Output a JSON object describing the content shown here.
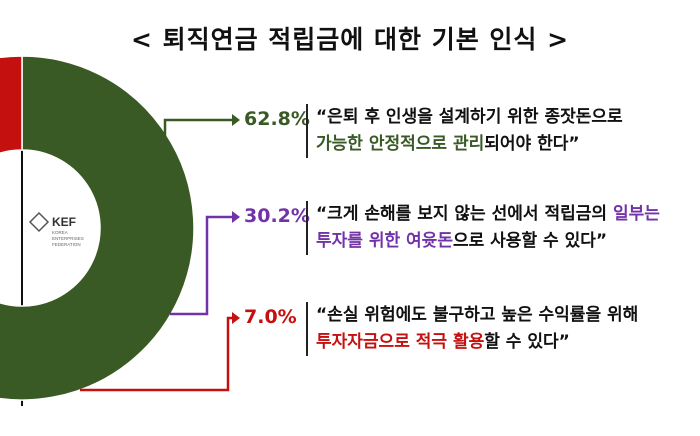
{
  "title": "< 퇴직연금 적립금에 대한 기본 인식 >",
  "logo": {
    "text": "KEF",
    "subtext": "KOREA ENTERPRISES FEDERATION"
  },
  "colors": {
    "green": "#3a5a25",
    "purple": "#7232a8",
    "red": "#c4100f"
  },
  "chart_data": {
    "type": "pie",
    "variant": "donut",
    "values": [
      62.8,
      30.2,
      7.0
    ],
    "labels": [
      "62.8%",
      "30.2%",
      "7.0%"
    ],
    "colors": [
      "#3a5a25",
      "#7232a8",
      "#c4100f"
    ]
  },
  "annotations": [
    {
      "pct": "62.8%",
      "color": "#3a5a25",
      "lines": [
        [
          {
            "t": "“은퇴 후 인생을 설계하기 위한 종잣돈으로",
            "hl": false
          }
        ],
        [
          {
            "t": "가능한 안정적으로 관리",
            "hl": true
          },
          {
            "t": "되어야 한다”",
            "hl": false
          }
        ]
      ]
    },
    {
      "pct": "30.2%",
      "color": "#7232a8",
      "lines": [
        [
          {
            "t": "“크게 손해를 보지 않는 선에서 적립금의 ",
            "hl": false
          },
          {
            "t": "일부는",
            "hl": true
          }
        ],
        [
          {
            "t": "투자를 위한 여윳돈",
            "hl": true
          },
          {
            "t": "으로 사용할 수 있다”",
            "hl": false
          }
        ]
      ]
    },
    {
      "pct": "7.0%",
      "color": "#c4100f",
      "lines": [
        [
          {
            "t": "“손실 위험에도 불구하고 높은 수익률을 위해",
            "hl": false
          }
        ],
        [
          {
            "t": "투자자금으로 적극 활용",
            "hl": true
          },
          {
            "t": "할 수 있다”",
            "hl": false
          }
        ]
      ]
    }
  ]
}
